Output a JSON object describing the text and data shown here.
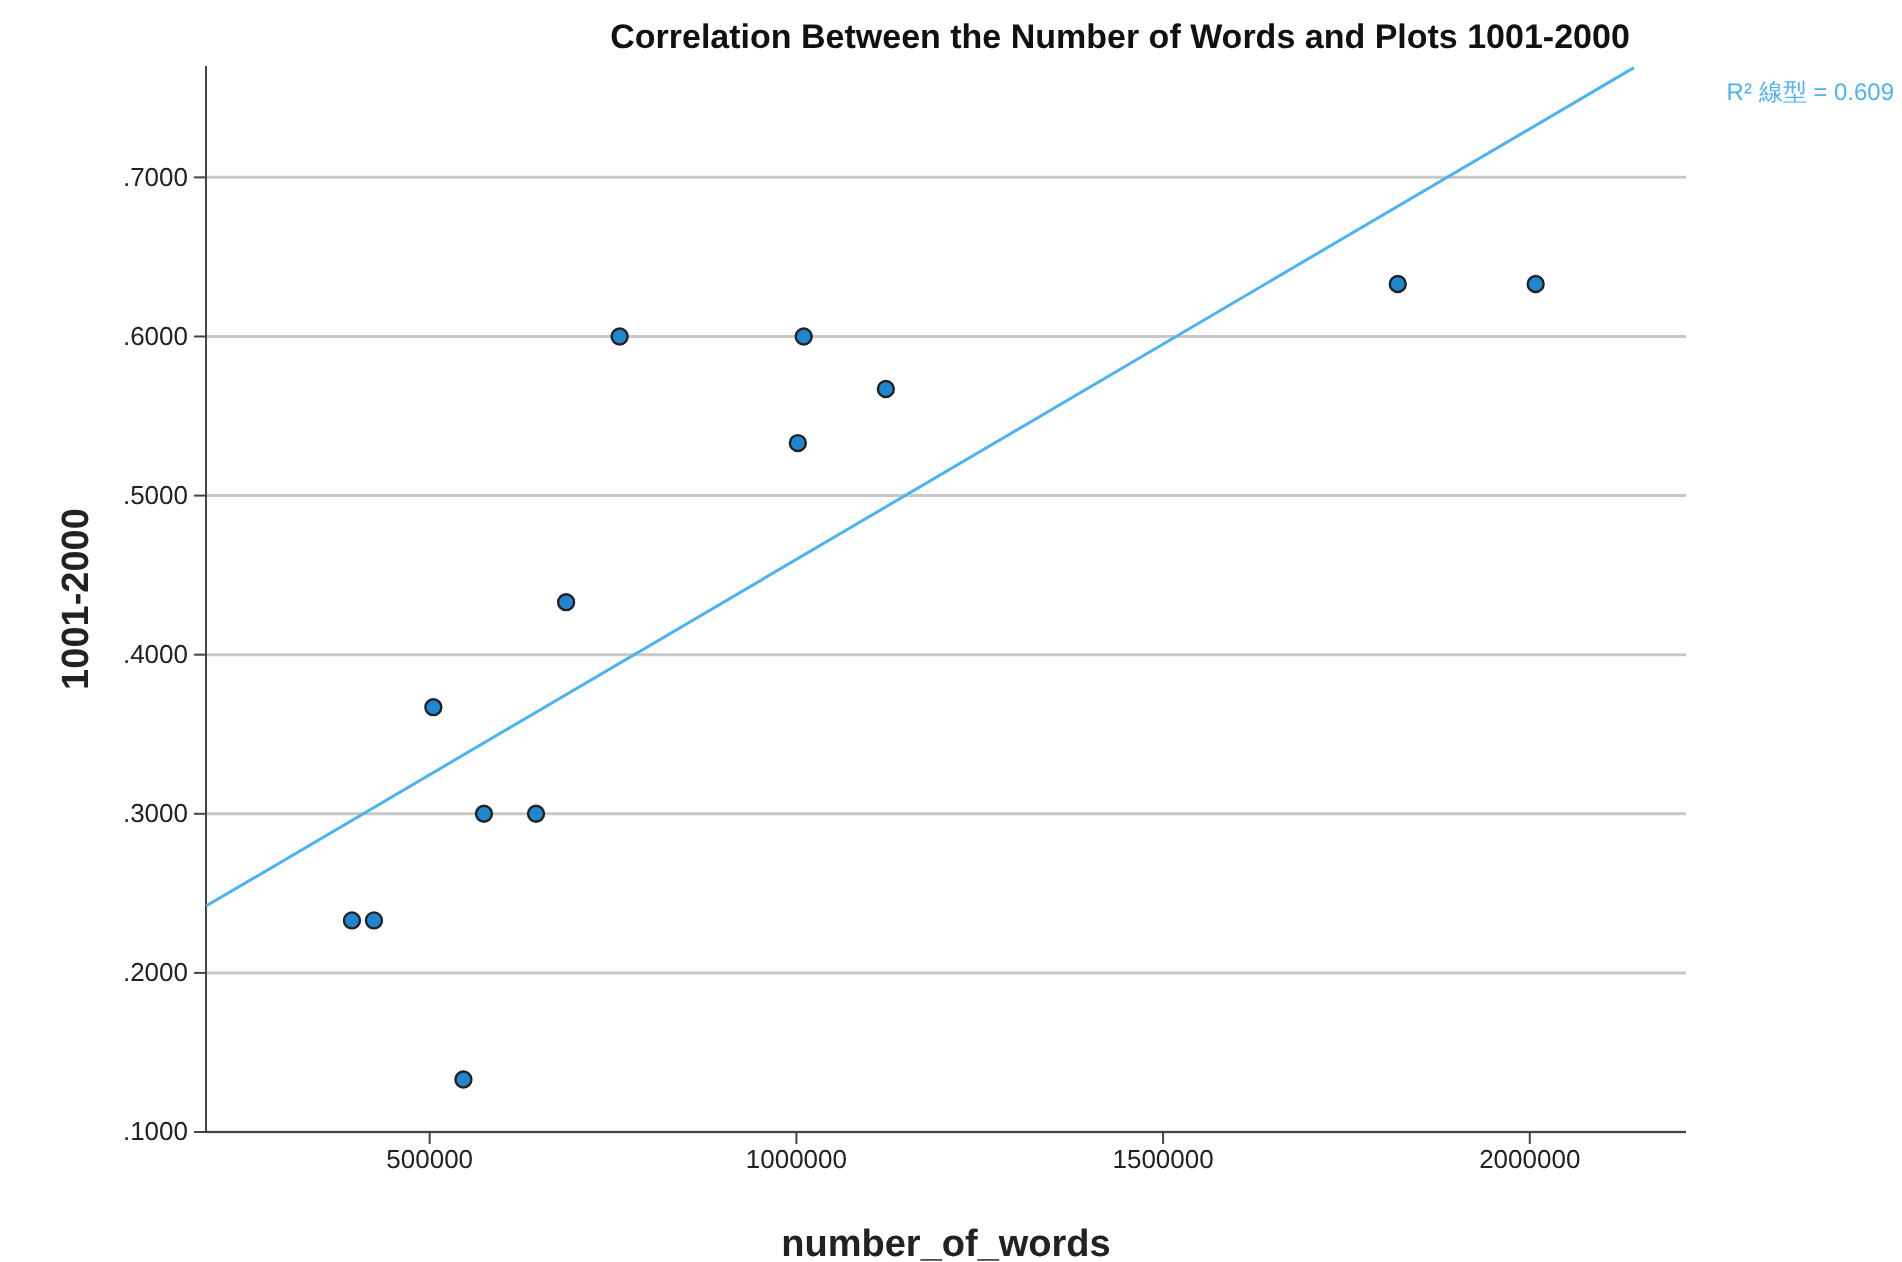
{
  "chart_data": {
    "type": "scatter",
    "title": "Correlation Between the Number of Words and Plots 1001-2000",
    "xlabel": "number_of_words",
    "ylabel": "1001-2000",
    "xlim": [
      195000,
      2213000
    ],
    "ylim": [
      0.1,
      0.77
    ],
    "xticks": [
      500000,
      1000000,
      1500000,
      2000000
    ],
    "yticks": [
      {
        "value": 0.1,
        "label": ".1000"
      },
      {
        "value": 0.2,
        "label": ".2000"
      },
      {
        "value": 0.3,
        "label": ".3000"
      },
      {
        "value": 0.4,
        "label": ".4000"
      },
      {
        "value": 0.5,
        "label": ".5000"
      },
      {
        "value": 0.6,
        "label": ".6000"
      },
      {
        "value": 0.7,
        "label": ".7000"
      }
    ],
    "grid": "y",
    "series": [
      {
        "marker": "circle",
        "color": "#1f87d0",
        "x": [
          394000,
          424000,
          505000,
          546000,
          574000,
          645000,
          686000,
          759000,
          1002000,
          1010000,
          1122000,
          1820000,
          2008000
        ],
        "values": [
          0.233,
          0.233,
          0.367,
          0.133,
          0.3,
          0.3,
          0.433,
          0.6,
          0.533,
          0.6,
          0.567,
          0.633,
          0.633
        ]
      },
      {
        "type": "line",
        "color": "#4db3f0",
        "x": [
          195000,
          2142000
        ],
        "values": [
          0.242,
          0.769
        ]
      }
    ],
    "annotations": [
      "R² 線型 = 0.609"
    ]
  }
}
